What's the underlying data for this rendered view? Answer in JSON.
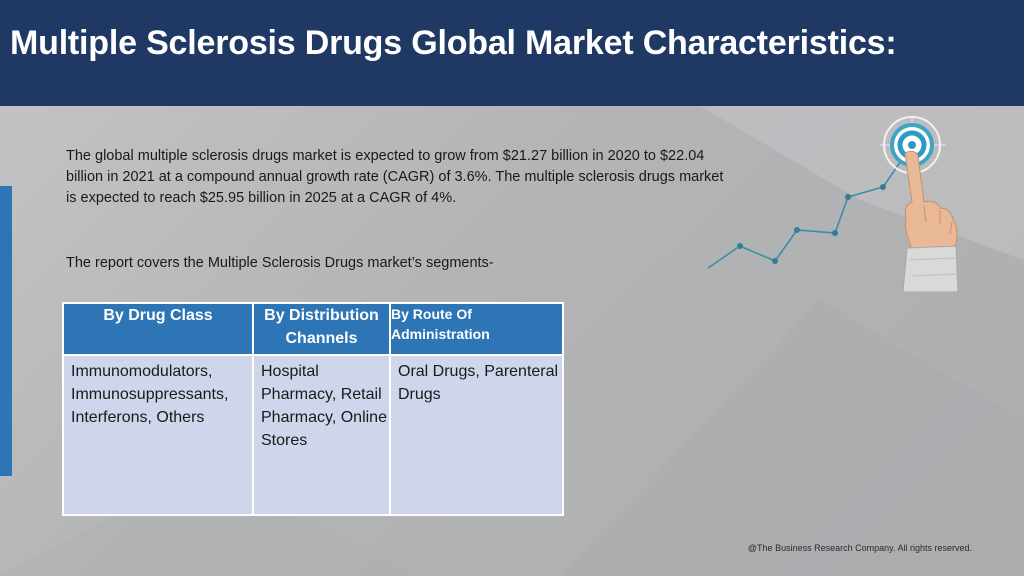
{
  "header": {
    "title": "Multiple Sclerosis Drugs Global Market Characteristics:"
  },
  "body": {
    "intro": "The global multiple sclerosis drugs market is expected to grow from $21.27 billion in 2020 to $22.04 billion in 2021 at a compound annual growth rate (CAGR) of 3.6%. The multiple sclerosis drugs market is expected to reach $25.95 billion in 2025 at a CAGR of 4%.",
    "segments_intro": "The report covers the Multiple Sclerosis Drugs market’s segments-"
  },
  "table": {
    "headers": [
      "By Drug Class",
      "By Distribution Channels",
      "By Route Of Administration"
    ],
    "cells": [
      "Immunomodulators, Immunosuppressants, Interferons, Others",
      "Hospital Pharmacy, Retail Pharmacy, Online Stores",
      "Oral Drugs, Parenteral Drugs"
    ]
  },
  "footer": {
    "copyright": "@The Business Research Company. All rights reserved."
  },
  "colors": {
    "header_bg": "#1f3864",
    "table_header_bg": "#2e75b6",
    "table_cell_bg": "#cfd5ea",
    "accent_bar": "#2e75b6",
    "chart_line": "#3a8fa8"
  },
  "icons": {
    "illustration": "hand-pointing-target-growth-chart-icon"
  }
}
